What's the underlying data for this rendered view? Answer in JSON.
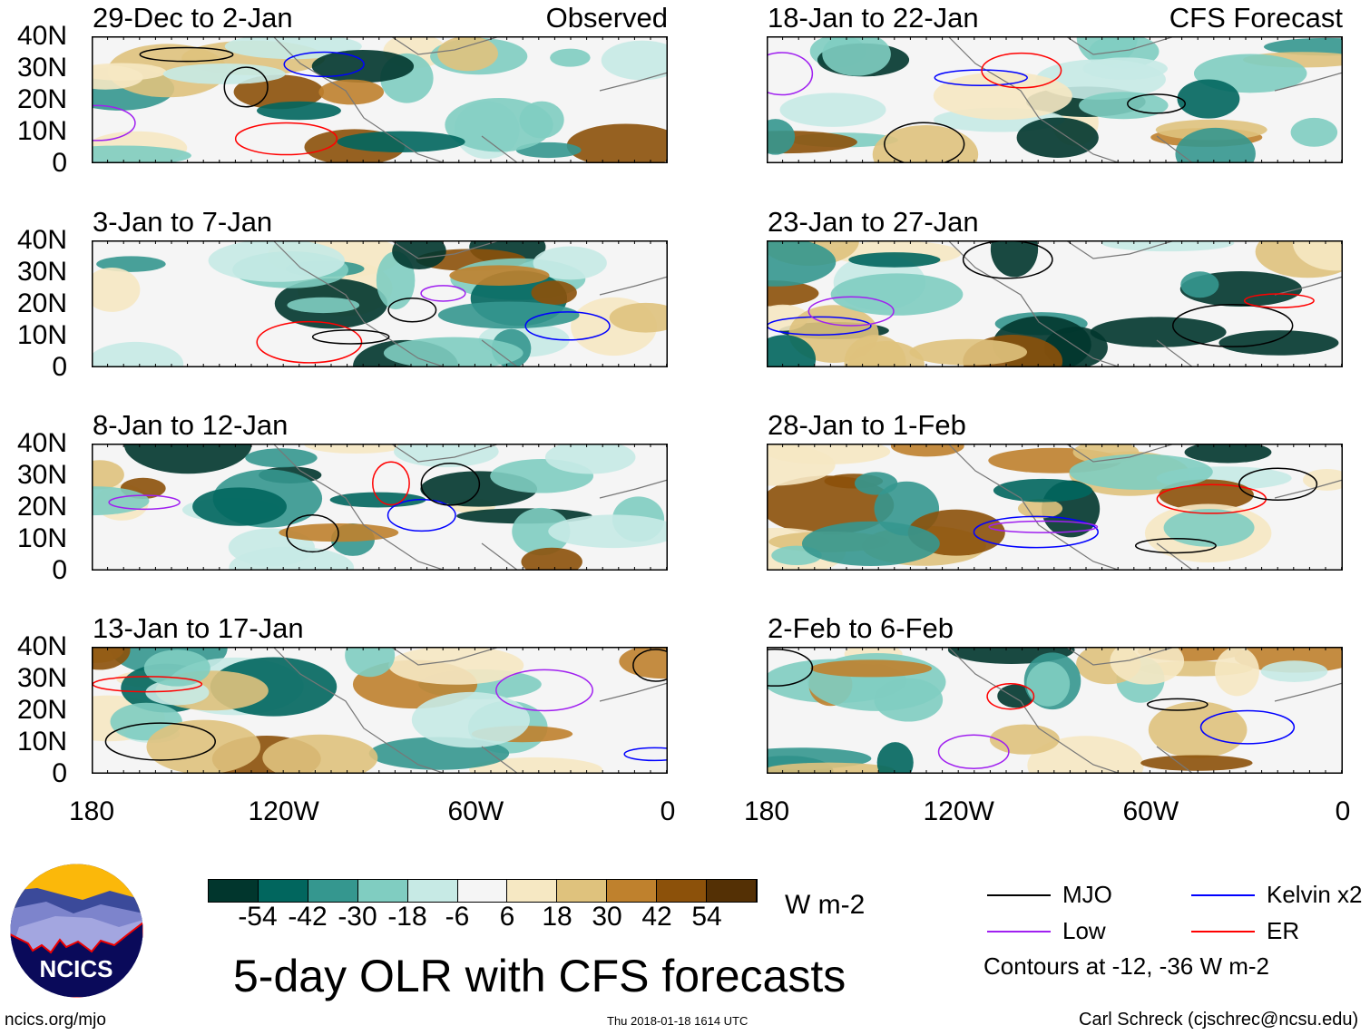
{
  "chart_data": {
    "type": "heatmap",
    "title": "5-day OLR with CFS forecasts",
    "units": "W m-2",
    "colorbar": {
      "ticks": [
        "-54",
        "-42",
        "-30",
        "-18",
        "-6",
        "6",
        "18",
        "30",
        "42",
        "54"
      ],
      "colors": [
        "#01362d",
        "#01665e",
        "#35978f",
        "#80cdc1",
        "#c7eae5",
        "#f5f5f5",
        "#f6e8c3",
        "#dfc27d",
        "#bf812d",
        "#8c510a",
        "#543005"
      ]
    },
    "lat_ticks": [
      "40N",
      "30N",
      "20N",
      "10N",
      "0"
    ],
    "lon_ticks": [
      "180",
      "120W",
      "60W",
      "0"
    ],
    "lat_range": [
      0,
      40
    ],
    "lon_range": [
      -180,
      0
    ],
    "observed_label": "Observed",
    "forecast_label": "CFS Forecast",
    "panels": [
      {
        "title": "29-Dec to 2-Jan",
        "kind": "observed"
      },
      {
        "title": "3-Jan to 7-Jan",
        "kind": "observed"
      },
      {
        "title": "8-Jan to 12-Jan",
        "kind": "observed"
      },
      {
        "title": "13-Jan to 17-Jan",
        "kind": "observed"
      },
      {
        "title": "18-Jan to 22-Jan",
        "kind": "forecast"
      },
      {
        "title": "23-Jan to 27-Jan",
        "kind": "forecast"
      },
      {
        "title": "28-Jan to 1-Feb",
        "kind": "forecast"
      },
      {
        "title": "2-Feb to 6-Feb",
        "kind": "forecast"
      }
    ],
    "legend": [
      {
        "label": "MJO",
        "color": "#000000"
      },
      {
        "label": "Kelvin x2",
        "color": "#0000ff"
      },
      {
        "label": "Low",
        "color": "#a020f0"
      },
      {
        "label": "ER",
        "color": "#ff0000"
      }
    ],
    "contour_note": "Contours at -12, -36 W m-2"
  },
  "footer": {
    "logo_text": "NCICS",
    "url": "ncics.org/mjo",
    "timestamp": "Thu 2018-01-18 1614 UTC",
    "author": "Carl Schreck (cjschrec@ncsu.edu)"
  }
}
